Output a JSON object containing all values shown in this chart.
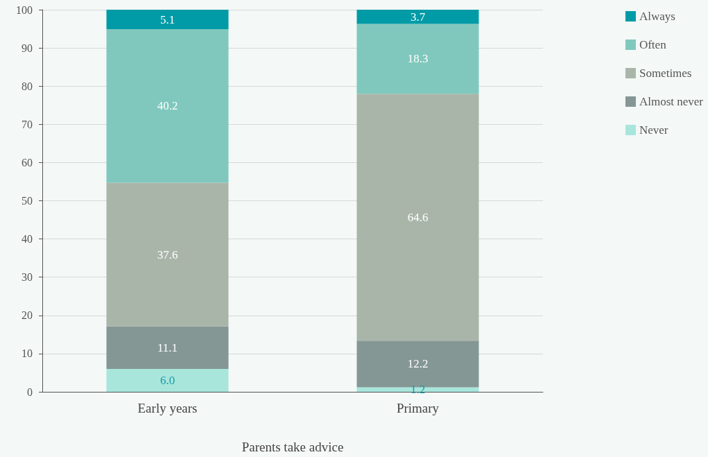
{
  "chart_data": {
    "type": "bar",
    "stacked": true,
    "xlabel": "Parents take advice",
    "categories": [
      "Early years",
      "Primary"
    ],
    "series": [
      {
        "name": "Never",
        "color": "#a8e6dc",
        "values": [
          6.0,
          1.2
        ],
        "value_labels": [
          "6.0",
          "1.2"
        ]
      },
      {
        "name": "Almost never",
        "color": "#859795",
        "values": [
          11.1,
          12.2
        ],
        "value_labels": [
          "11.1",
          "12.2"
        ]
      },
      {
        "name": "Sometimes",
        "color": "#aab5aa",
        "values": [
          37.6,
          64.6
        ],
        "value_labels": [
          "37.6",
          "64.6"
        ]
      },
      {
        "name": "Often",
        "color": "#80c8bd",
        "values": [
          40.2,
          18.3
        ],
        "value_labels": [
          "40.2",
          "18.3"
        ]
      },
      {
        "name": "Always",
        "color": "#009ba6",
        "values": [
          5.1,
          3.7
        ],
        "value_labels": [
          "5.1",
          "3.7"
        ]
      }
    ],
    "ylim": [
      0,
      100
    ],
    "yticks": [
      0,
      10,
      20,
      30,
      40,
      50,
      60,
      70,
      80,
      90,
      100
    ],
    "grid": "y",
    "legend": "top right"
  }
}
